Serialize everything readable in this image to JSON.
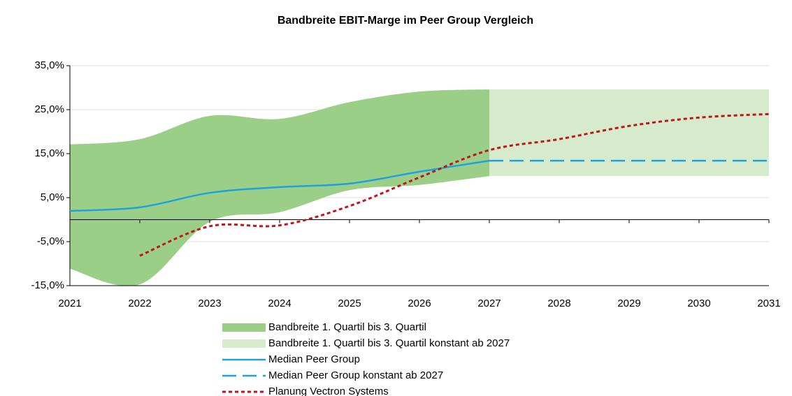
{
  "chart_data": {
    "type": "line",
    "title": "Bandbreite EBIT-Marge im Peer Group Vergleich",
    "x": [
      2021,
      2022,
      2023,
      2024,
      2025,
      2026,
      2027,
      2028,
      2029,
      2030,
      2031
    ],
    "xlim": [
      2021,
      2031
    ],
    "xticks": [
      2021,
      2022,
      2023,
      2024,
      2025,
      2026,
      2027,
      2028,
      2029,
      2030,
      2031
    ],
    "ylim": [
      -15,
      35
    ],
    "yticks": [
      {
        "value": -15,
        "label": "-15,0%"
      },
      {
        "value": -5,
        "label": "-5,0%"
      },
      {
        "value": 5,
        "label": "5,0%"
      },
      {
        "value": 15,
        "label": "15,0%"
      },
      {
        "value": 25,
        "label": "25,0%"
      },
      {
        "value": 35,
        "label": "35,0%"
      }
    ],
    "grid": true,
    "legend": "bottom",
    "series": [
      {
        "name": "Bandbreite 1. Quartil bis 3. Quartil",
        "kind": "band",
        "color": "#9bcf88",
        "low": [
          -11.2,
          -14.7,
          -0.5,
          1.7,
          6.7,
          7.9,
          9.9,
          null,
          null,
          null,
          null
        ],
        "high": [
          17.1,
          18.3,
          23.6,
          22.9,
          26.7,
          29.1,
          29.6,
          null,
          null,
          null,
          null
        ]
      },
      {
        "name": "Bandbreite 1. Quartil bis 3. Quartil konstant ab 2027",
        "kind": "band",
        "color": "#d6ebcc",
        "low": [
          null,
          null,
          null,
          null,
          null,
          null,
          9.9,
          9.9,
          9.9,
          9.9,
          9.9
        ],
        "high": [
          null,
          null,
          null,
          null,
          null,
          null,
          29.6,
          29.6,
          29.6,
          29.6,
          29.6
        ]
      },
      {
        "name": "Median Peer Group",
        "kind": "line",
        "color": "#1ea1dc",
        "dash": "solid",
        "values": [
          2.0,
          2.8,
          6.1,
          7.4,
          8.2,
          10.9,
          13.4,
          null,
          null,
          null,
          null
        ]
      },
      {
        "name": "Median Peer Group konstant ab 2027",
        "kind": "line",
        "color": "#1ea1dc",
        "dash": "long",
        "values": [
          null,
          null,
          null,
          null,
          null,
          null,
          13.4,
          13.4,
          13.4,
          13.4,
          13.4
        ]
      },
      {
        "name": "Planung Vectron Systems",
        "kind": "line",
        "color": "#c0151d",
        "dash": "short",
        "values": [
          null,
          -8.2,
          -1.5,
          -1.3,
          3.1,
          9.6,
          15.8,
          18.3,
          21.3,
          23.2,
          24.0
        ]
      }
    ]
  }
}
